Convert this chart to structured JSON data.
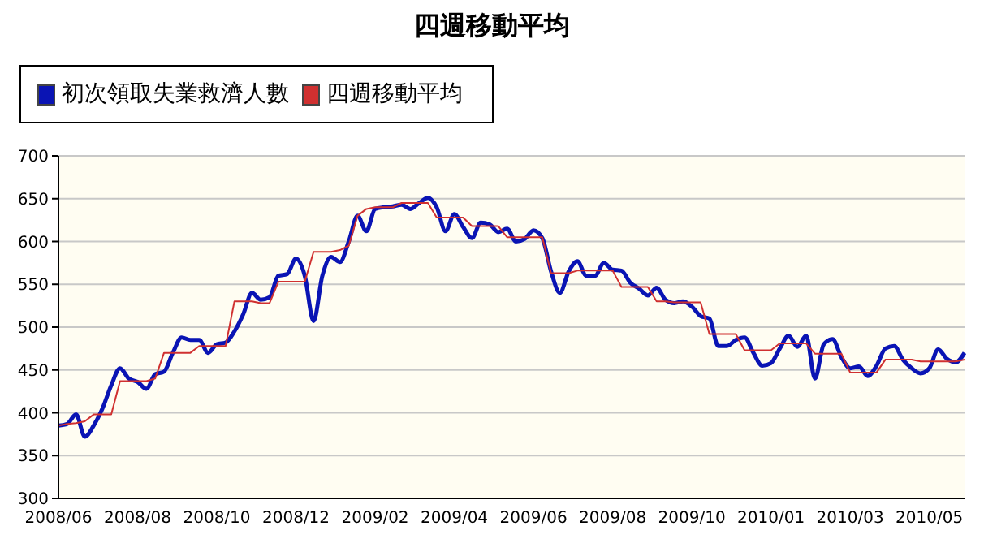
{
  "chart_data": {
    "type": "line",
    "title": "四週移動平均",
    "categories": [
      "2008/06",
      null,
      null,
      null,
      null,
      null,
      null,
      null,
      null,
      "2008/08",
      null,
      null,
      null,
      null,
      null,
      null,
      null,
      null,
      "2008/10",
      null,
      null,
      null,
      null,
      null,
      null,
      null,
      null,
      "2008/12",
      null,
      null,
      null,
      null,
      null,
      null,
      null,
      null,
      "2009/02",
      null,
      null,
      null,
      null,
      null,
      null,
      null,
      null,
      "2009/04",
      null,
      null,
      null,
      null,
      null,
      null,
      null,
      null,
      "2009/06",
      null,
      null,
      null,
      null,
      null,
      null,
      null,
      null,
      "2009/08",
      null,
      null,
      null,
      null,
      null,
      null,
      null,
      null,
      "2009/10",
      null,
      null,
      null,
      null,
      null,
      null,
      null,
      null,
      "2010/01",
      null,
      null,
      null,
      null,
      null,
      null,
      null,
      null,
      "2010/03",
      null,
      null,
      null,
      null,
      null,
      null,
      null,
      null,
      "2010/05",
      null,
      null,
      null,
      null
    ],
    "series": [
      {
        "name": "初次領取失業救濟人數",
        "color": "#0a14b4",
        "values": [
          385,
          387,
          398,
          372,
          385,
          405,
          432,
          452,
          440,
          436,
          428,
          445,
          448,
          470,
          488,
          485,
          485,
          470,
          480,
          482,
          495,
          515,
          540,
          532,
          535,
          560,
          562,
          580,
          560,
          507,
          560,
          582,
          576,
          600,
          630,
          612,
          638,
          640,
          641,
          643,
          638,
          645,
          651,
          640,
          612,
          632,
          617,
          604,
          622,
          620,
          611,
          615,
          600,
          603,
          613,
          604,
          565,
          540,
          565,
          577,
          560,
          560,
          575,
          567,
          566,
          552,
          545,
          537,
          546,
          532,
          528,
          530,
          524,
          513,
          510,
          478,
          478,
          485,
          488,
          470,
          455,
          458,
          475,
          490,
          477,
          490,
          440,
          480,
          486,
          465,
          452,
          454,
          443,
          455,
          475,
          478,
          462,
          452,
          446,
          452,
          474,
          463,
          459,
          470
        ]
      },
      {
        "name": "四週移動平均",
        "color": "#d03030",
        "values": [
          385,
          387,
          388,
          390,
          398,
          398,
          398,
          437,
          437,
          437,
          437,
          440,
          470,
          470,
          470,
          470,
          478,
          478,
          478,
          478,
          530,
          530,
          530,
          528,
          528,
          553,
          553,
          553,
          553,
          588,
          588,
          588,
          590,
          595,
          630,
          638,
          640,
          640,
          640,
          645,
          645,
          645,
          645,
          628,
          628,
          628,
          628,
          618,
          618,
          618,
          618,
          605,
          605,
          605,
          605,
          605,
          563,
          563,
          563,
          566,
          566,
          566,
          566,
          566,
          547,
          547,
          547,
          547,
          530,
          530,
          529,
          529,
          529,
          529,
          492,
          492,
          492,
          492,
          473,
          473,
          473,
          473,
          481,
          481,
          481,
          481,
          469,
          469,
          469,
          469,
          447,
          447,
          447,
          447,
          462,
          462,
          462,
          462,
          460,
          460,
          460,
          460,
          460,
          462
        ]
      }
    ],
    "ylim": [
      300,
      700
    ],
    "yticks": [
      300,
      350,
      400,
      450,
      500,
      550,
      600,
      650,
      700
    ],
    "grid": "y",
    "legend": "top left",
    "marker": "none",
    "line_style": "solid"
  }
}
